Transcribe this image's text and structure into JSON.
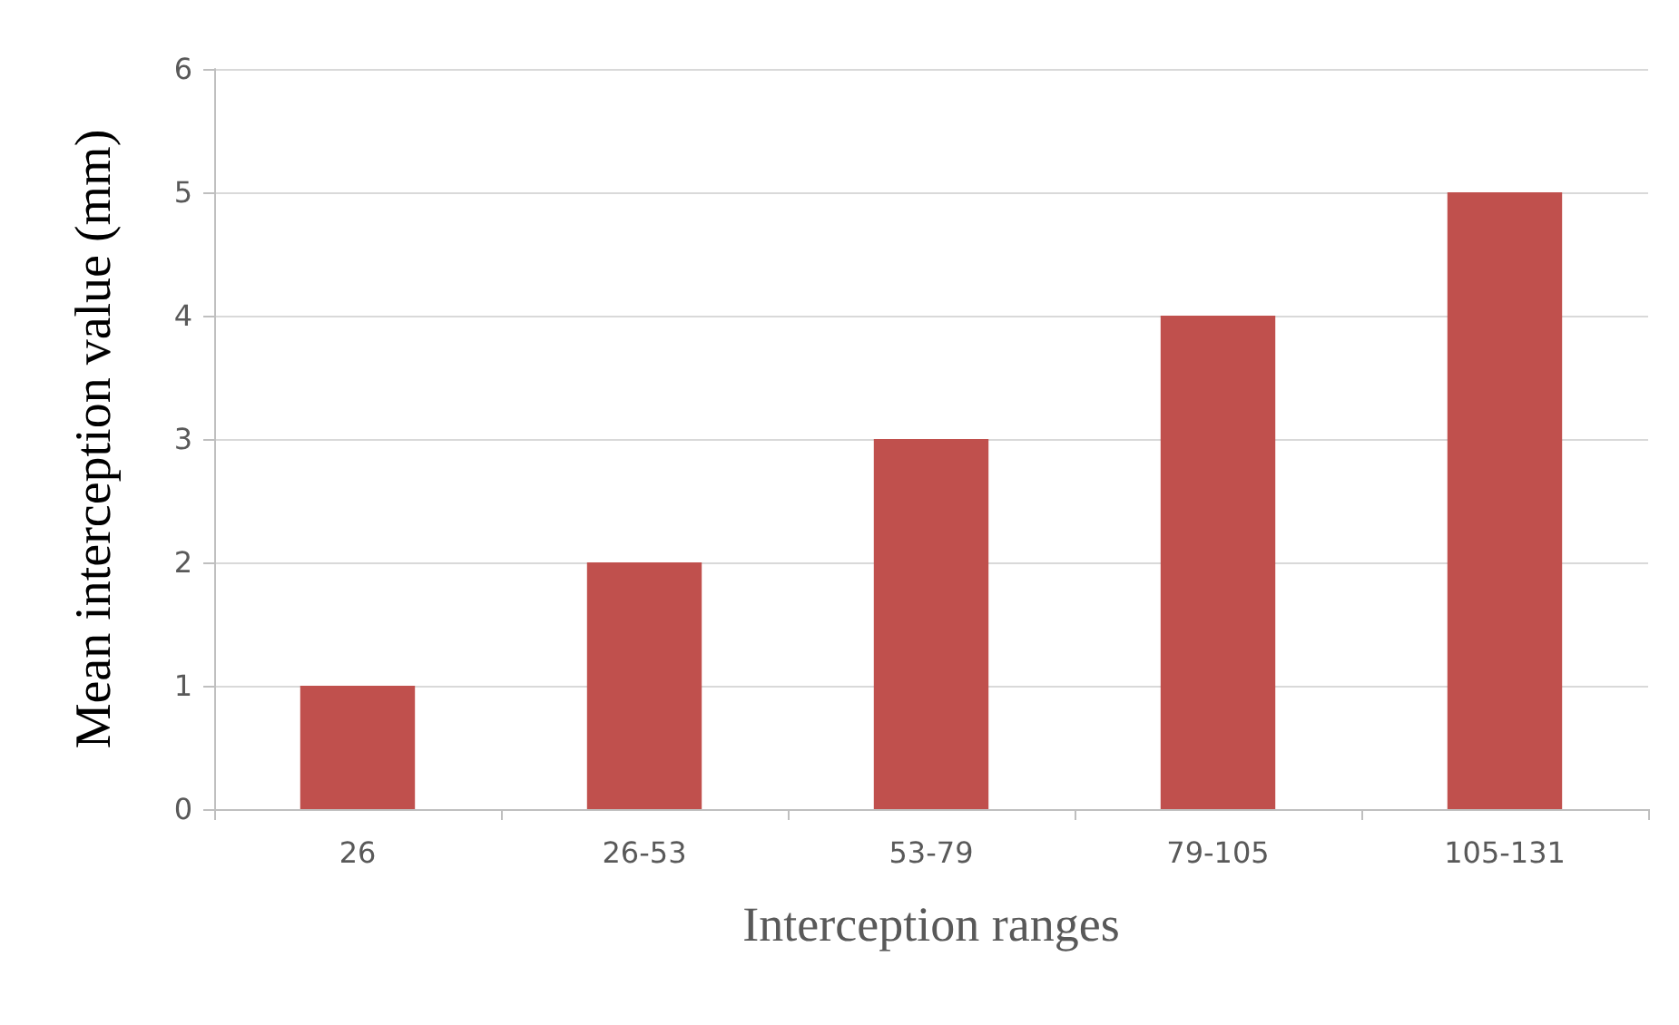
{
  "chart_data": {
    "type": "bar",
    "xlabel": "Interception ranges",
    "ylabel": "Mean interception value (mm)",
    "categories": [
      "26",
      "26-53",
      "53-79",
      "79-105",
      "105-131"
    ],
    "values": [
      1,
      2,
      3,
      4,
      5
    ],
    "color": "#c0504d",
    "ylim": [
      0,
      6
    ],
    "yticks": [
      0,
      1,
      2,
      3,
      4,
      5,
      6
    ],
    "grid": "y"
  }
}
